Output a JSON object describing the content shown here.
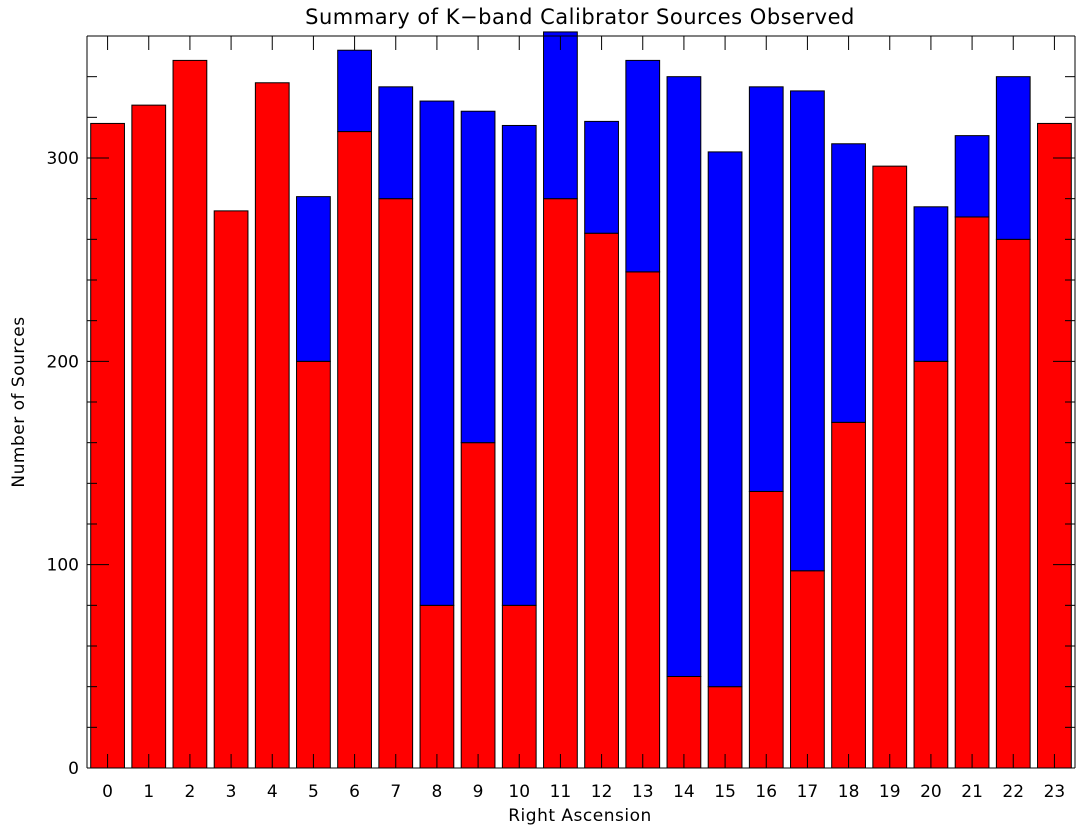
{
  "chart_data": {
    "type": "bar",
    "stacked": true,
    "title": "Summary of K−band Calibrator Sources Observed",
    "xlabel": "Right Ascension",
    "ylabel": "Number of Sources",
    "categories": [
      "0",
      "1",
      "2",
      "3",
      "4",
      "5",
      "6",
      "7",
      "8",
      "9",
      "10",
      "11",
      "12",
      "13",
      "14",
      "15",
      "16",
      "17",
      "18",
      "19",
      "20",
      "21",
      "22",
      "23"
    ],
    "ylim": [
      0,
      360
    ],
    "y_ticks": [
      "0",
      "100",
      "200",
      "300"
    ],
    "y_tick_values": [
      0,
      100,
      200,
      300
    ],
    "y_minor_step": 20,
    "grid": false,
    "series": [
      {
        "color": "#ff0000",
        "values": [
          317,
          326,
          348,
          274,
          337,
          200,
          313,
          280,
          80,
          160,
          80,
          280,
          263,
          244,
          45,
          40,
          136,
          97,
          170,
          296,
          200,
          271,
          260,
          317
        ]
      },
      {
        "color": "#0000ff",
        "values": [
          0,
          0,
          0,
          0,
          0,
          81,
          40,
          55,
          248,
          163,
          236,
          82,
          55,
          104,
          295,
          263,
          199,
          236,
          137,
          0,
          76,
          40,
          80,
          0
        ]
      }
    ]
  }
}
